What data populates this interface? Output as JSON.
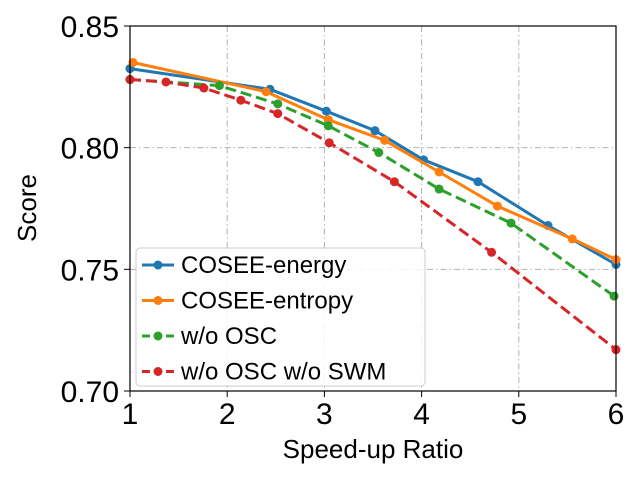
{
  "chart_data": {
    "type": "line",
    "title": "",
    "xlabel": "Speed-up Ratio",
    "ylabel": "Score",
    "xlim": [
      1,
      6
    ],
    "ylim": [
      0.7,
      0.85
    ],
    "xticks": [
      1,
      2,
      3,
      4,
      5,
      6
    ],
    "xtick_labels": [
      "1",
      "2",
      "3",
      "4",
      "5",
      "6"
    ],
    "yticks": [
      0.7,
      0.75,
      0.8,
      0.85
    ],
    "ytick_labels": [
      "0.70",
      "0.75",
      "0.80",
      "0.85"
    ],
    "grid": true,
    "legend_position": "lower-left",
    "series": [
      {
        "name": "COSEE-energy",
        "color": "#1f77b4",
        "dashed": false,
        "marker": "circle",
        "x": [
          1.0,
          2.44,
          3.02,
          3.52,
          4.02,
          4.58,
          5.3,
          6.0
        ],
        "y": [
          0.8325,
          0.824,
          0.815,
          0.807,
          0.795,
          0.786,
          0.768,
          0.752
        ]
      },
      {
        "name": "COSEE-entropy",
        "color": "#ff7f0e",
        "dashed": false,
        "marker": "circle",
        "x": [
          1.03,
          2.4,
          3.04,
          3.62,
          4.18,
          4.78,
          5.55,
          6.0
        ],
        "y": [
          0.835,
          0.823,
          0.8115,
          0.803,
          0.79,
          0.776,
          0.7625,
          0.754
        ]
      },
      {
        "name": "w/o OSC",
        "color": "#2ca02c",
        "dashed": true,
        "marker": "circle",
        "x": [
          1.0,
          1.92,
          2.52,
          3.04,
          3.56,
          4.18,
          4.92,
          5.98
        ],
        "y": [
          0.828,
          0.8255,
          0.818,
          0.809,
          0.798,
          0.783,
          0.769,
          0.739
        ]
      },
      {
        "name": "w/o OSC w/o SWM",
        "color": "#d62728",
        "dashed": true,
        "marker": "circle",
        "x": [
          1.0,
          1.37,
          1.76,
          2.14,
          2.52,
          3.05,
          3.72,
          4.72,
          6.0
        ],
        "y": [
          0.828,
          0.827,
          0.8245,
          0.8195,
          0.814,
          0.802,
          0.786,
          0.757,
          0.717
        ]
      }
    ]
  }
}
